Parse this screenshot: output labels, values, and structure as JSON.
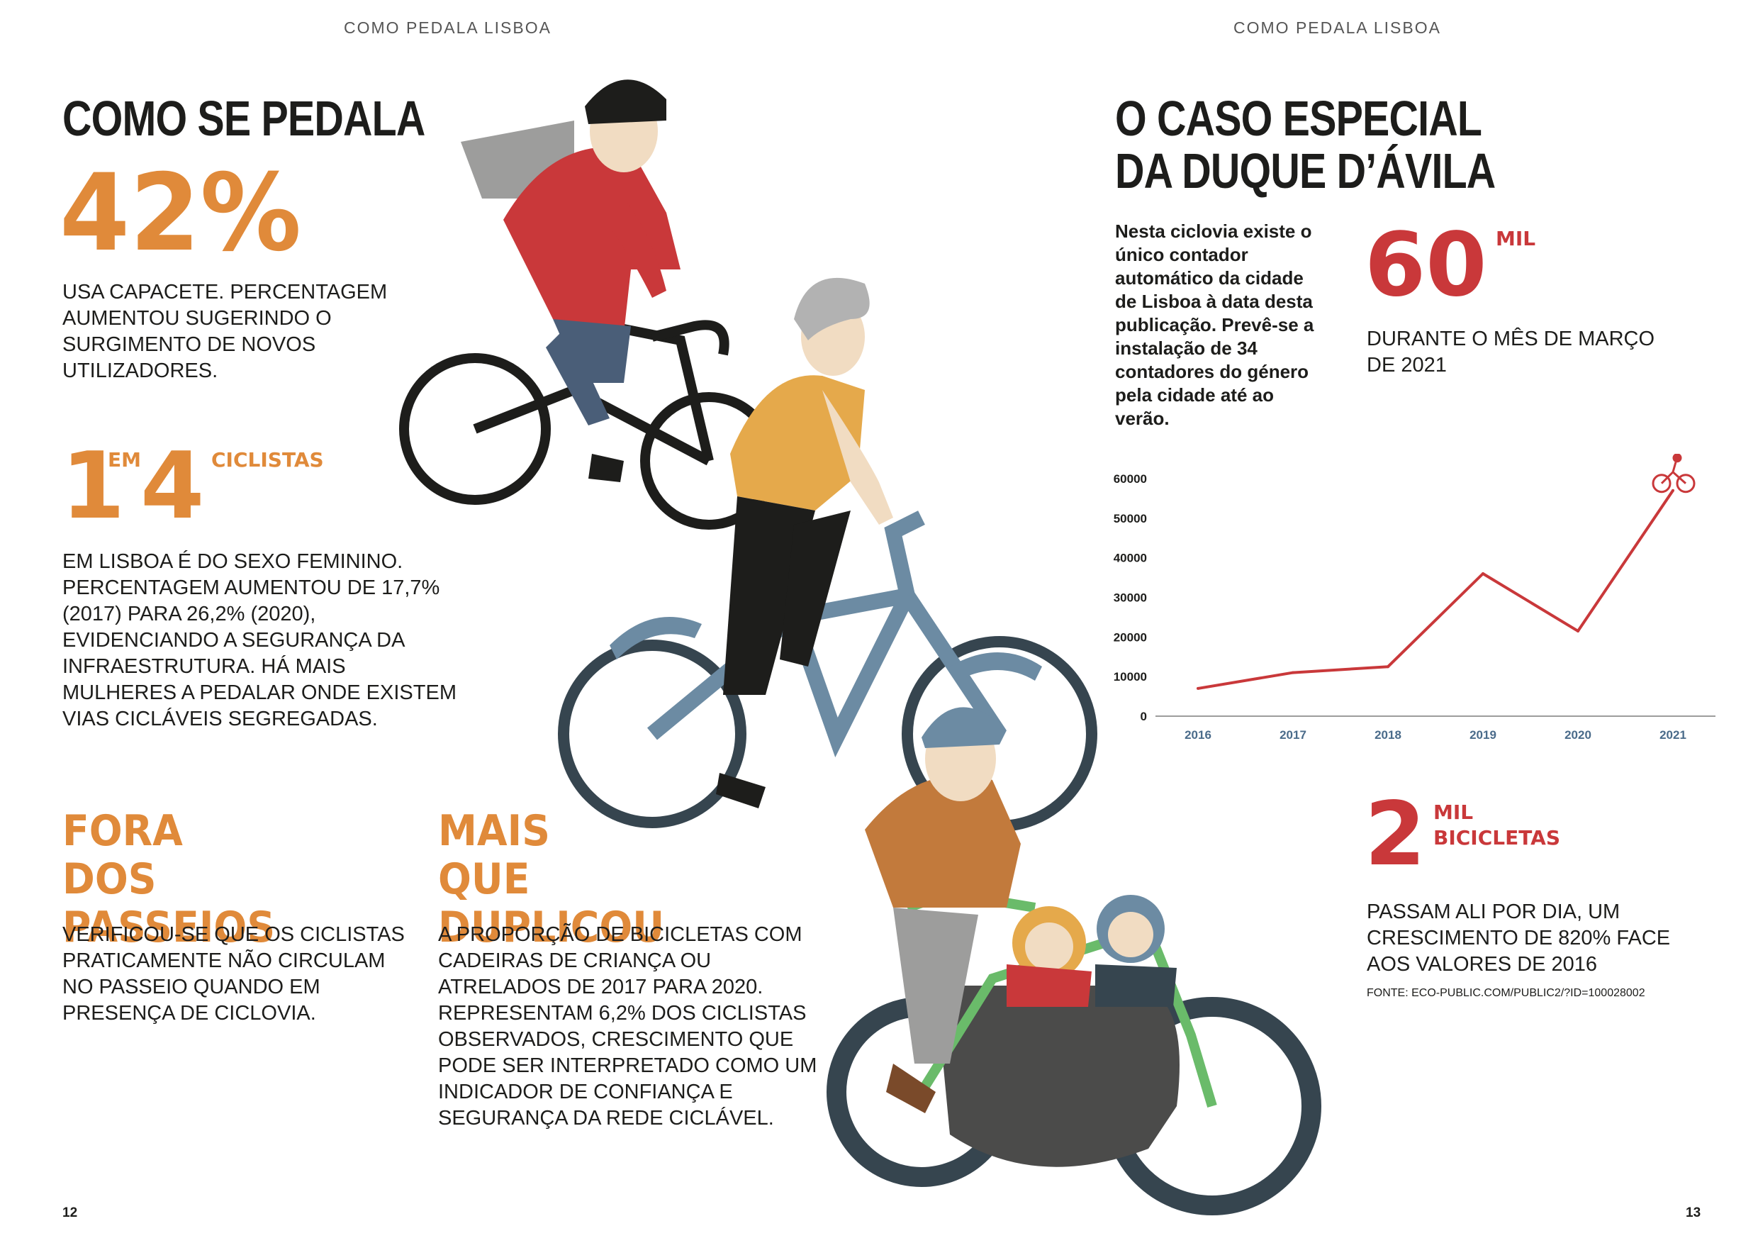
{
  "left_page": {
    "running_header": "COMO PEDALA LISBOA",
    "title": "COMO SE PEDALA",
    "helmet_stat": "42%",
    "helmet_text": "USA CAPACETE. PERCENTAGEM AUMENTOU SUGERINDO O SURGIMENTO DE NOVOS UTILIZADORES.",
    "women_stat_1": "1",
    "women_stat_em": "EM",
    "women_stat_4": "4",
    "women_stat_unit": "CICLISTAS",
    "women_text": "EM LISBOA É DO SEXO FEMININO. PERCENTAGEM AUMENTOU DE 17,7% (2017) PARA 26,2% (2020), EVIDENCIANDO A SEGURANÇA DA INFRAESTRUTURA. HÁ MAIS MULHERES A PEDALAR ONDE EXISTEM VIAS CICLÁVEIS SEGREGADAS.",
    "sidewalk_title": "FORA DOS PASSEIOS",
    "sidewalk_text": "VERIFICOU-SE QUE OS CICLISTAS PRATICAMENTE NÃO CIRCULAM NO PASSEIO QUANDO EM PRESENÇA DE CICLOVIA.",
    "doubled_title": "MAIS QUE DUPLICOU",
    "doubled_text": "A PROPORÇÃO DE BICICLETAS COM CADEIRAS DE CRIANÇA OU ATRELADOS DE 2017 PARA 2020. REPRESENTAM 6,2% DOS CICLISTAS OBSERVADOS, CRESCIMENTO QUE PODE SER INTERPRETADO COMO UM INDICADOR DE CONFIANÇA E SEGURANÇA DA REDE CICLÁVEL.",
    "page_number": "12"
  },
  "right_page": {
    "running_header": "COMO PEDALA LISBOA",
    "title_line1": "O CASO ESPECIAL",
    "title_line2": "DA DUQUE D’ÁVILA",
    "intro_text": "Nesta ciclovia existe o único contador automático da cidade de Lisboa à data desta publicação. Prevê-se a instalação de 34 contadores do género pela cidade até ao verão.",
    "march_stat": "60",
    "march_unit": "MIL",
    "march_text": "DURANTE O MÊS DE MARÇO DE 2021",
    "daily_stat": "2",
    "daily_unit_1": "MIL",
    "daily_unit_2": "BICICLETAS",
    "daily_text": "PASSAM ALI POR DIA, UM CRESCIMENTO DE 820% FACE AOS VALORES DE 2016",
    "source": "FONTE: ECO-PUBLIC.COM/PUBLIC2/?ID=100028002",
    "page_number": "13"
  },
  "colors": {
    "orange": "#e08a3a",
    "red": "#c9383a",
    "dark": "#1d1d1b",
    "axis_label": "#4a6b8a"
  },
  "chart_data": {
    "type": "line",
    "x": [
      "2016",
      "2017",
      "2018",
      "2019",
      "2020",
      "2021"
    ],
    "series": [
      {
        "values": [
          7000,
          11000,
          12500,
          36000,
          21500,
          57000
        ]
      }
    ],
    "yticks": [
      "0",
      "10000",
      "20000",
      "30000",
      "40000",
      "50000",
      "60000"
    ],
    "ylim": [
      0,
      60000
    ],
    "line_color": "#c9383a",
    "grid": false,
    "end_marker": "bicycle-icon"
  }
}
